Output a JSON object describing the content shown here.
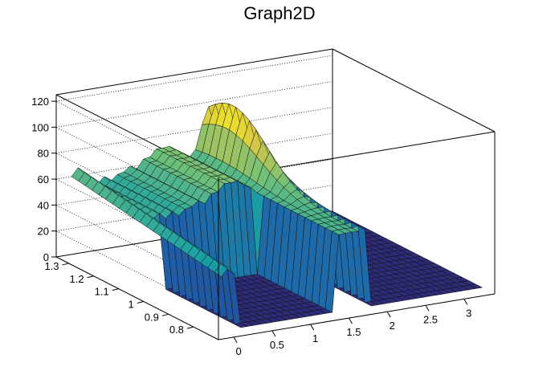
{
  "chart_data": {
    "type": "surface",
    "title": "Graph2D",
    "x_ticks": [
      "0",
      "0.5",
      "1",
      "1.5",
      "2",
      "2.5",
      "3"
    ],
    "y_ticks": [
      "0.8",
      "0.9",
      "1",
      "1.1",
      "1.2",
      "1.3"
    ],
    "z_ticks": [
      "0",
      "20",
      "40",
      "60",
      "80",
      "100",
      "120"
    ],
    "xlim": [
      -0.2,
      3.4
    ],
    "ylim": [
      0.7,
      1.35
    ],
    "zlim": [
      0,
      125
    ],
    "grid": true,
    "colormap": "viridis-like",
    "surface_features": [
      {
        "description_free": true,
        "x_range": [
          0,
          1.5
        ],
        "z_plateau": 58
      },
      {
        "x_range": [
          1.7,
          1.9
        ],
        "z_peak": 100
      },
      {
        "x_range": [
          1.95,
          3.4
        ],
        "z_value": 0
      }
    ]
  }
}
